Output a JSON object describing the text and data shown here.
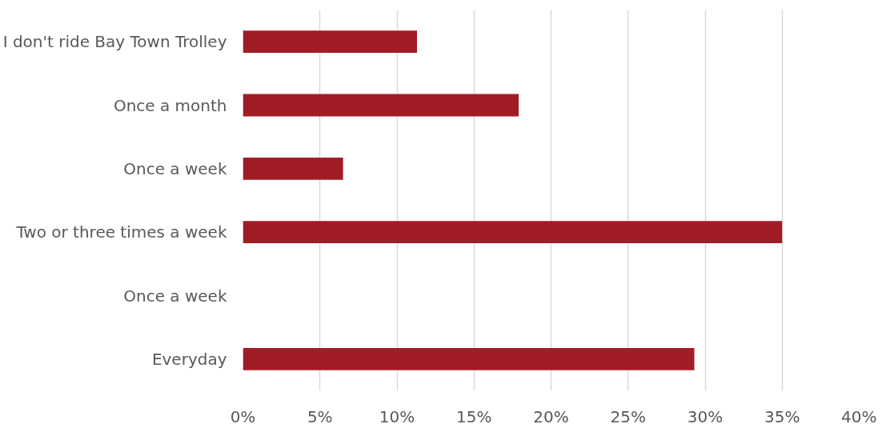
{
  "chart_data": {
    "type": "bar",
    "orientation": "horizontal",
    "categories": [
      "I don't ride Bay Town Trolley",
      "Once a month",
      "Once a week",
      "Two or three times a week",
      "Once a week",
      "Everyday"
    ],
    "values": [
      11.3,
      17.9,
      6.5,
      35.0,
      null,
      29.3
    ],
    "color": "#a11d26",
    "xlim": [
      0,
      40
    ],
    "xticks": [
      {
        "value": 0,
        "label": "0%"
      },
      {
        "value": 5,
        "label": "5%"
      },
      {
        "value": 10,
        "label": "10%"
      },
      {
        "value": 15,
        "label": "15%"
      },
      {
        "value": 20,
        "label": "20%"
      },
      {
        "value": 25,
        "label": "25%"
      },
      {
        "value": 30,
        "label": "30%"
      },
      {
        "value": 35,
        "label": "35%"
      },
      {
        "value": 40,
        "label": "40%"
      }
    ],
    "grid": "x"
  }
}
